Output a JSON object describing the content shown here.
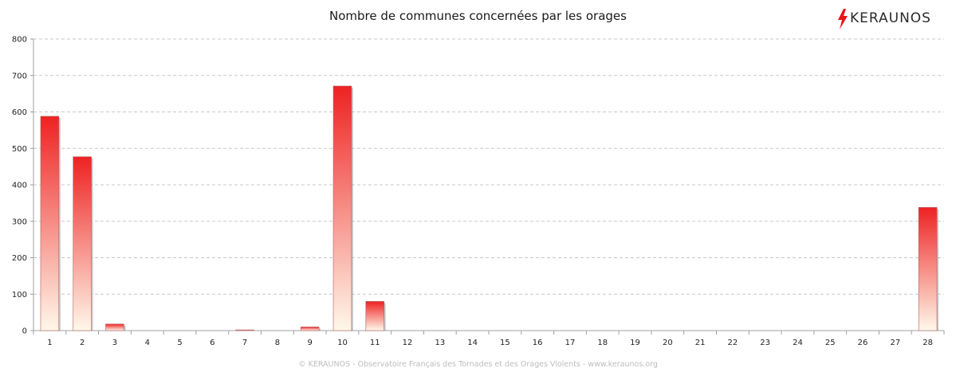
{
  "logo": {
    "text": "KERAUNOS",
    "icon": "lightning-bolt-icon",
    "accent": "#e8141b"
  },
  "footer": "© KERAUNOS - Observatoire Français des Tornades et des Orages Violents - www.keraunos.org",
  "chart_data": {
    "type": "bar",
    "title": "Nombre de communes concernées par les orages",
    "xlabel": "",
    "ylabel": "",
    "categories": [
      "1",
      "2",
      "3",
      "4",
      "5",
      "6",
      "7",
      "8",
      "9",
      "10",
      "11",
      "12",
      "13",
      "14",
      "15",
      "16",
      "17",
      "18",
      "19",
      "20",
      "21",
      "22",
      "23",
      "24",
      "25",
      "26",
      "27",
      "28"
    ],
    "values": [
      588,
      477,
      18,
      0,
      0,
      0,
      2,
      0,
      10,
      671,
      80,
      0,
      0,
      0,
      0,
      0,
      0,
      0,
      0,
      0,
      0,
      0,
      0,
      0,
      0,
      0,
      0,
      338
    ],
    "yticks": [
      "0",
      "100",
      "200",
      "300",
      "400",
      "500",
      "600",
      "700",
      "800"
    ],
    "ylim": [
      0,
      800
    ],
    "grid": true,
    "bar_color_top": "#ee2222",
    "bar_color_bottom": "#fff8ea"
  }
}
